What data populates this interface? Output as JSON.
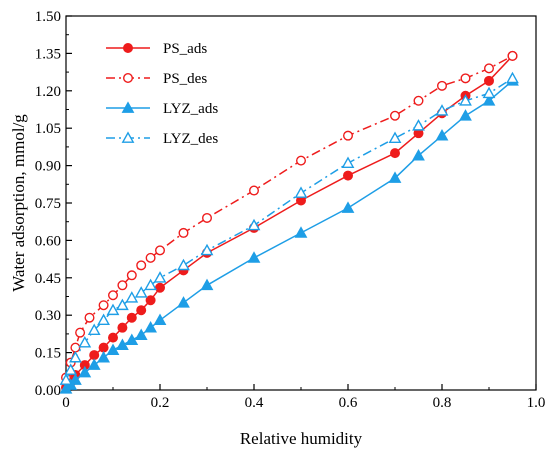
{
  "chart_data": {
    "type": "line",
    "title": "",
    "xlabel": "Relative humidity",
    "ylabel": "Water adsorption, mmol/g",
    "xlim": [
      0,
      1.0
    ],
    "ylim": [
      0,
      1.5
    ],
    "xticks": [
      "0",
      "0.2",
      "0.4",
      "0.6",
      "0.8",
      "1.0"
    ],
    "yticks": [
      "0.00",
      "0.15",
      "0.30",
      "0.45",
      "0.60",
      "0.75",
      "0.90",
      "1.05",
      "1.20",
      "1.35",
      "1.50"
    ],
    "grid": false,
    "legend_position": "top-left",
    "series": [
      {
        "name": "PS_ads",
        "color": "#ee1c1c",
        "marker": "filled-circle",
        "line": "solid",
        "x": [
          0.0,
          0.01,
          0.02,
          0.04,
          0.06,
          0.08,
          0.1,
          0.12,
          0.14,
          0.16,
          0.18,
          0.2,
          0.25,
          0.3,
          0.4,
          0.5,
          0.6,
          0.7,
          0.75,
          0.8,
          0.85,
          0.9,
          0.95
        ],
        "y": [
          0.01,
          0.03,
          0.06,
          0.1,
          0.14,
          0.17,
          0.21,
          0.25,
          0.29,
          0.32,
          0.36,
          0.41,
          0.48,
          0.55,
          0.65,
          0.76,
          0.86,
          0.95,
          1.03,
          1.11,
          1.18,
          1.24,
          1.34
        ]
      },
      {
        "name": "PS_des",
        "color": "#ee1c1c",
        "marker": "open-circle",
        "line": "dashdot",
        "x": [
          0.0,
          0.01,
          0.02,
          0.03,
          0.05,
          0.08,
          0.1,
          0.12,
          0.14,
          0.16,
          0.18,
          0.2,
          0.25,
          0.3,
          0.4,
          0.5,
          0.6,
          0.7,
          0.75,
          0.8,
          0.85,
          0.9,
          0.95
        ],
        "y": [
          0.05,
          0.11,
          0.17,
          0.23,
          0.29,
          0.34,
          0.38,
          0.42,
          0.46,
          0.5,
          0.53,
          0.56,
          0.63,
          0.69,
          0.8,
          0.92,
          1.02,
          1.1,
          1.16,
          1.22,
          1.25,
          1.29,
          1.34
        ]
      },
      {
        "name": "LYZ_ads",
        "color": "#1e9ee6",
        "marker": "filled-triangle",
        "line": "solid",
        "x": [
          0.0,
          0.01,
          0.02,
          0.04,
          0.06,
          0.08,
          0.1,
          0.12,
          0.14,
          0.16,
          0.18,
          0.2,
          0.25,
          0.3,
          0.4,
          0.5,
          0.6,
          0.7,
          0.75,
          0.8,
          0.85,
          0.9,
          0.95
        ],
        "y": [
          0.005,
          0.02,
          0.04,
          0.07,
          0.1,
          0.13,
          0.16,
          0.18,
          0.2,
          0.22,
          0.25,
          0.28,
          0.35,
          0.42,
          0.53,
          0.63,
          0.73,
          0.85,
          0.94,
          1.02,
          1.1,
          1.16,
          1.24
        ]
      },
      {
        "name": "LYZ_des",
        "color": "#1e9ee6",
        "marker": "open-triangle",
        "line": "dashdot",
        "x": [
          0.0,
          0.01,
          0.02,
          0.04,
          0.06,
          0.08,
          0.1,
          0.12,
          0.14,
          0.16,
          0.18,
          0.2,
          0.25,
          0.3,
          0.4,
          0.5,
          0.6,
          0.7,
          0.75,
          0.8,
          0.85,
          0.9,
          0.95
        ],
        "y": [
          0.04,
          0.08,
          0.13,
          0.19,
          0.24,
          0.28,
          0.32,
          0.34,
          0.37,
          0.39,
          0.42,
          0.45,
          0.5,
          0.56,
          0.66,
          0.79,
          0.91,
          1.01,
          1.06,
          1.12,
          1.16,
          1.19,
          1.25
        ]
      }
    ]
  }
}
